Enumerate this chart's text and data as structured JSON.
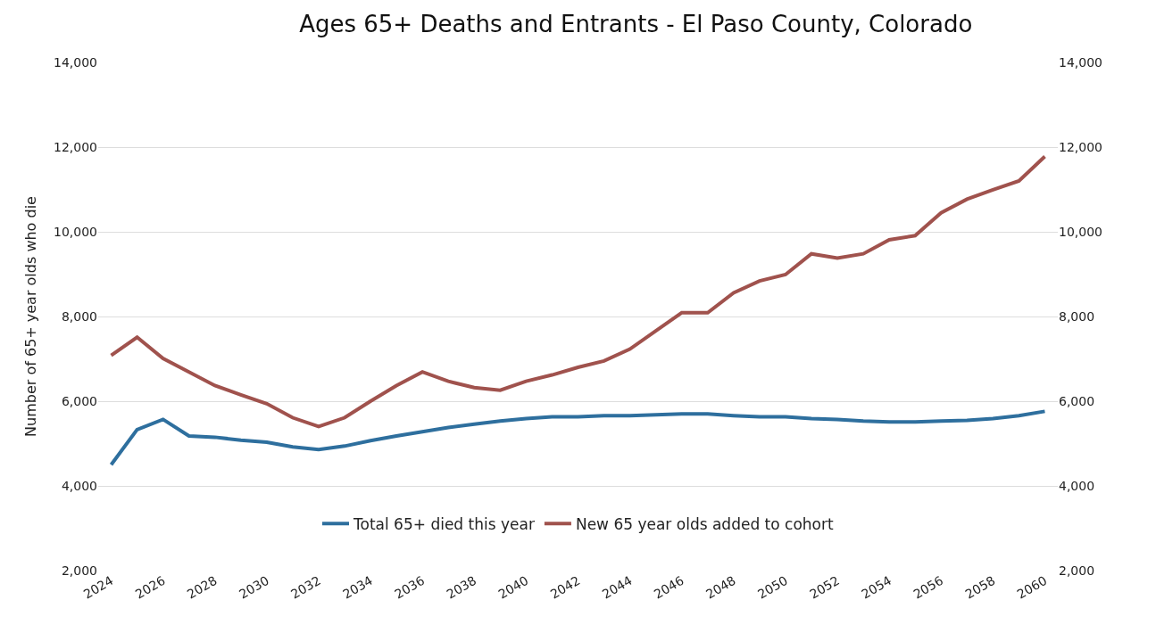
{
  "chart_data": {
    "type": "line",
    "title": "Ages 65+ Deaths and Entrants - El Paso County, Colorado",
    "ylabel": "Number of 65+ year olds who die",
    "x": [
      2024,
      2025,
      2026,
      2027,
      2028,
      2029,
      2030,
      2031,
      2032,
      2033,
      2034,
      2035,
      2036,
      2037,
      2038,
      2039,
      2040,
      2041,
      2042,
      2043,
      2044,
      2045,
      2046,
      2047,
      2048,
      2049,
      2050,
      2051,
      2052,
      2053,
      2054,
      2055,
      2056,
      2057,
      2058,
      2059,
      2060
    ],
    "series": [
      {
        "name": "Total 65+ died this year",
        "color": "#2e6f9e",
        "values": [
          4500,
          5330,
          5570,
          5180,
          5150,
          5080,
          5030,
          4920,
          4860,
          4940,
          5070,
          5180,
          5280,
          5380,
          5460,
          5530,
          5590,
          5630,
          5630,
          5660,
          5660,
          5680,
          5700,
          5700,
          5660,
          5630,
          5630,
          5590,
          5570,
          5530,
          5510,
          5510,
          5530,
          5550,
          5590,
          5660,
          5760
        ]
      },
      {
        "name": "New 65 year olds added to cohort",
        "color": "#a0524d",
        "axis": "y2",
        "values": [
          7080,
          7510,
          7010,
          6690,
          6370,
          6150,
          5940,
          5610,
          5400,
          5610,
          6000,
          6370,
          6690,
          6470,
          6320,
          6260,
          6470,
          6620,
          6800,
          6950,
          7230,
          7660,
          8090,
          8090,
          8560,
          8840,
          8990,
          9480,
          9380,
          9480,
          9810,
          9910,
          10450,
          10770,
          10990,
          11200,
          11780
        ]
      }
    ],
    "xlim": [
      2023.5,
      2060.5
    ],
    "xticks": [
      2024,
      2026,
      2028,
      2030,
      2032,
      2034,
      2036,
      2038,
      2040,
      2042,
      2044,
      2046,
      2048,
      2050,
      2052,
      2054,
      2056,
      2058,
      2060
    ],
    "ylim": [
      2000,
      14000
    ],
    "yticks": [
      {
        "value": 2000,
        "label": "2,000"
      },
      {
        "value": 4000,
        "label": "4,000"
      },
      {
        "value": 6000,
        "label": "6,000"
      },
      {
        "value": 8000,
        "label": "8,000"
      },
      {
        "value": 10000,
        "label": "10,000"
      },
      {
        "value": 12000,
        "label": "12,000"
      },
      {
        "value": 14000,
        "label": "14,000"
      }
    ],
    "y2lim": [
      2000,
      14000
    ],
    "y2ticks": [
      {
        "value": 2000,
        "label": "2,000"
      },
      {
        "value": 4000,
        "label": "4,000"
      },
      {
        "value": 6000,
        "label": "6,000"
      },
      {
        "value": 8000,
        "label": "8,000"
      },
      {
        "value": 10000,
        "label": "10,000"
      },
      {
        "value": 12000,
        "label": "12,000"
      },
      {
        "value": 14000,
        "label": "14,000"
      }
    ],
    "grid": "y",
    "legend": "bottom",
    "marker": "none",
    "line_style": "solid"
  }
}
